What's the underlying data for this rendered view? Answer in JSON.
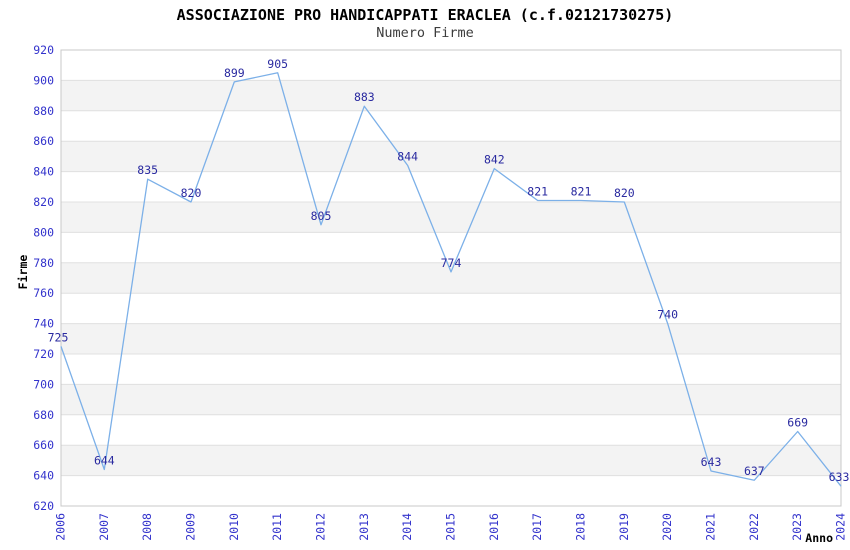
{
  "chart_data": {
    "type": "line",
    "title": "ASSOCIAZIONE PRO HANDICAPPATI ERACLEA (c.f.02121730275)",
    "subtitle": "Numero Firme",
    "xlabel": "Anno",
    "ylabel": "Firme",
    "categories": [
      "2006",
      "2007",
      "2008",
      "2009",
      "2010",
      "2011",
      "2012",
      "2013",
      "2014",
      "2015",
      "2016",
      "2017",
      "2018",
      "2019",
      "2020",
      "2021",
      "2022",
      "2023",
      "2024"
    ],
    "values": [
      725,
      644,
      835,
      820,
      899,
      905,
      805,
      883,
      844,
      774,
      842,
      821,
      821,
      820,
      740,
      643,
      637,
      669,
      633
    ],
    "ylim": [
      620,
      920
    ],
    "ytick_step": 20,
    "yticks": [
      620,
      640,
      660,
      680,
      700,
      720,
      740,
      760,
      780,
      800,
      820,
      840,
      860,
      880,
      900,
      920
    ],
    "grid": true,
    "zebra_banding": true,
    "legend": "none",
    "markers": "none",
    "data_labels_visible": true,
    "colors": {
      "line": "#7cb0e8",
      "data_label": "#2a2aa0",
      "tick_label": "#3333cc",
      "title": "#000000",
      "subtitle": "#3c3c3c",
      "axis_title": "#000000",
      "band": "#f3f3f3",
      "gridline": "#e0e0e0",
      "plot_border": "#c8c8c8",
      "background": "#ffffff"
    }
  }
}
